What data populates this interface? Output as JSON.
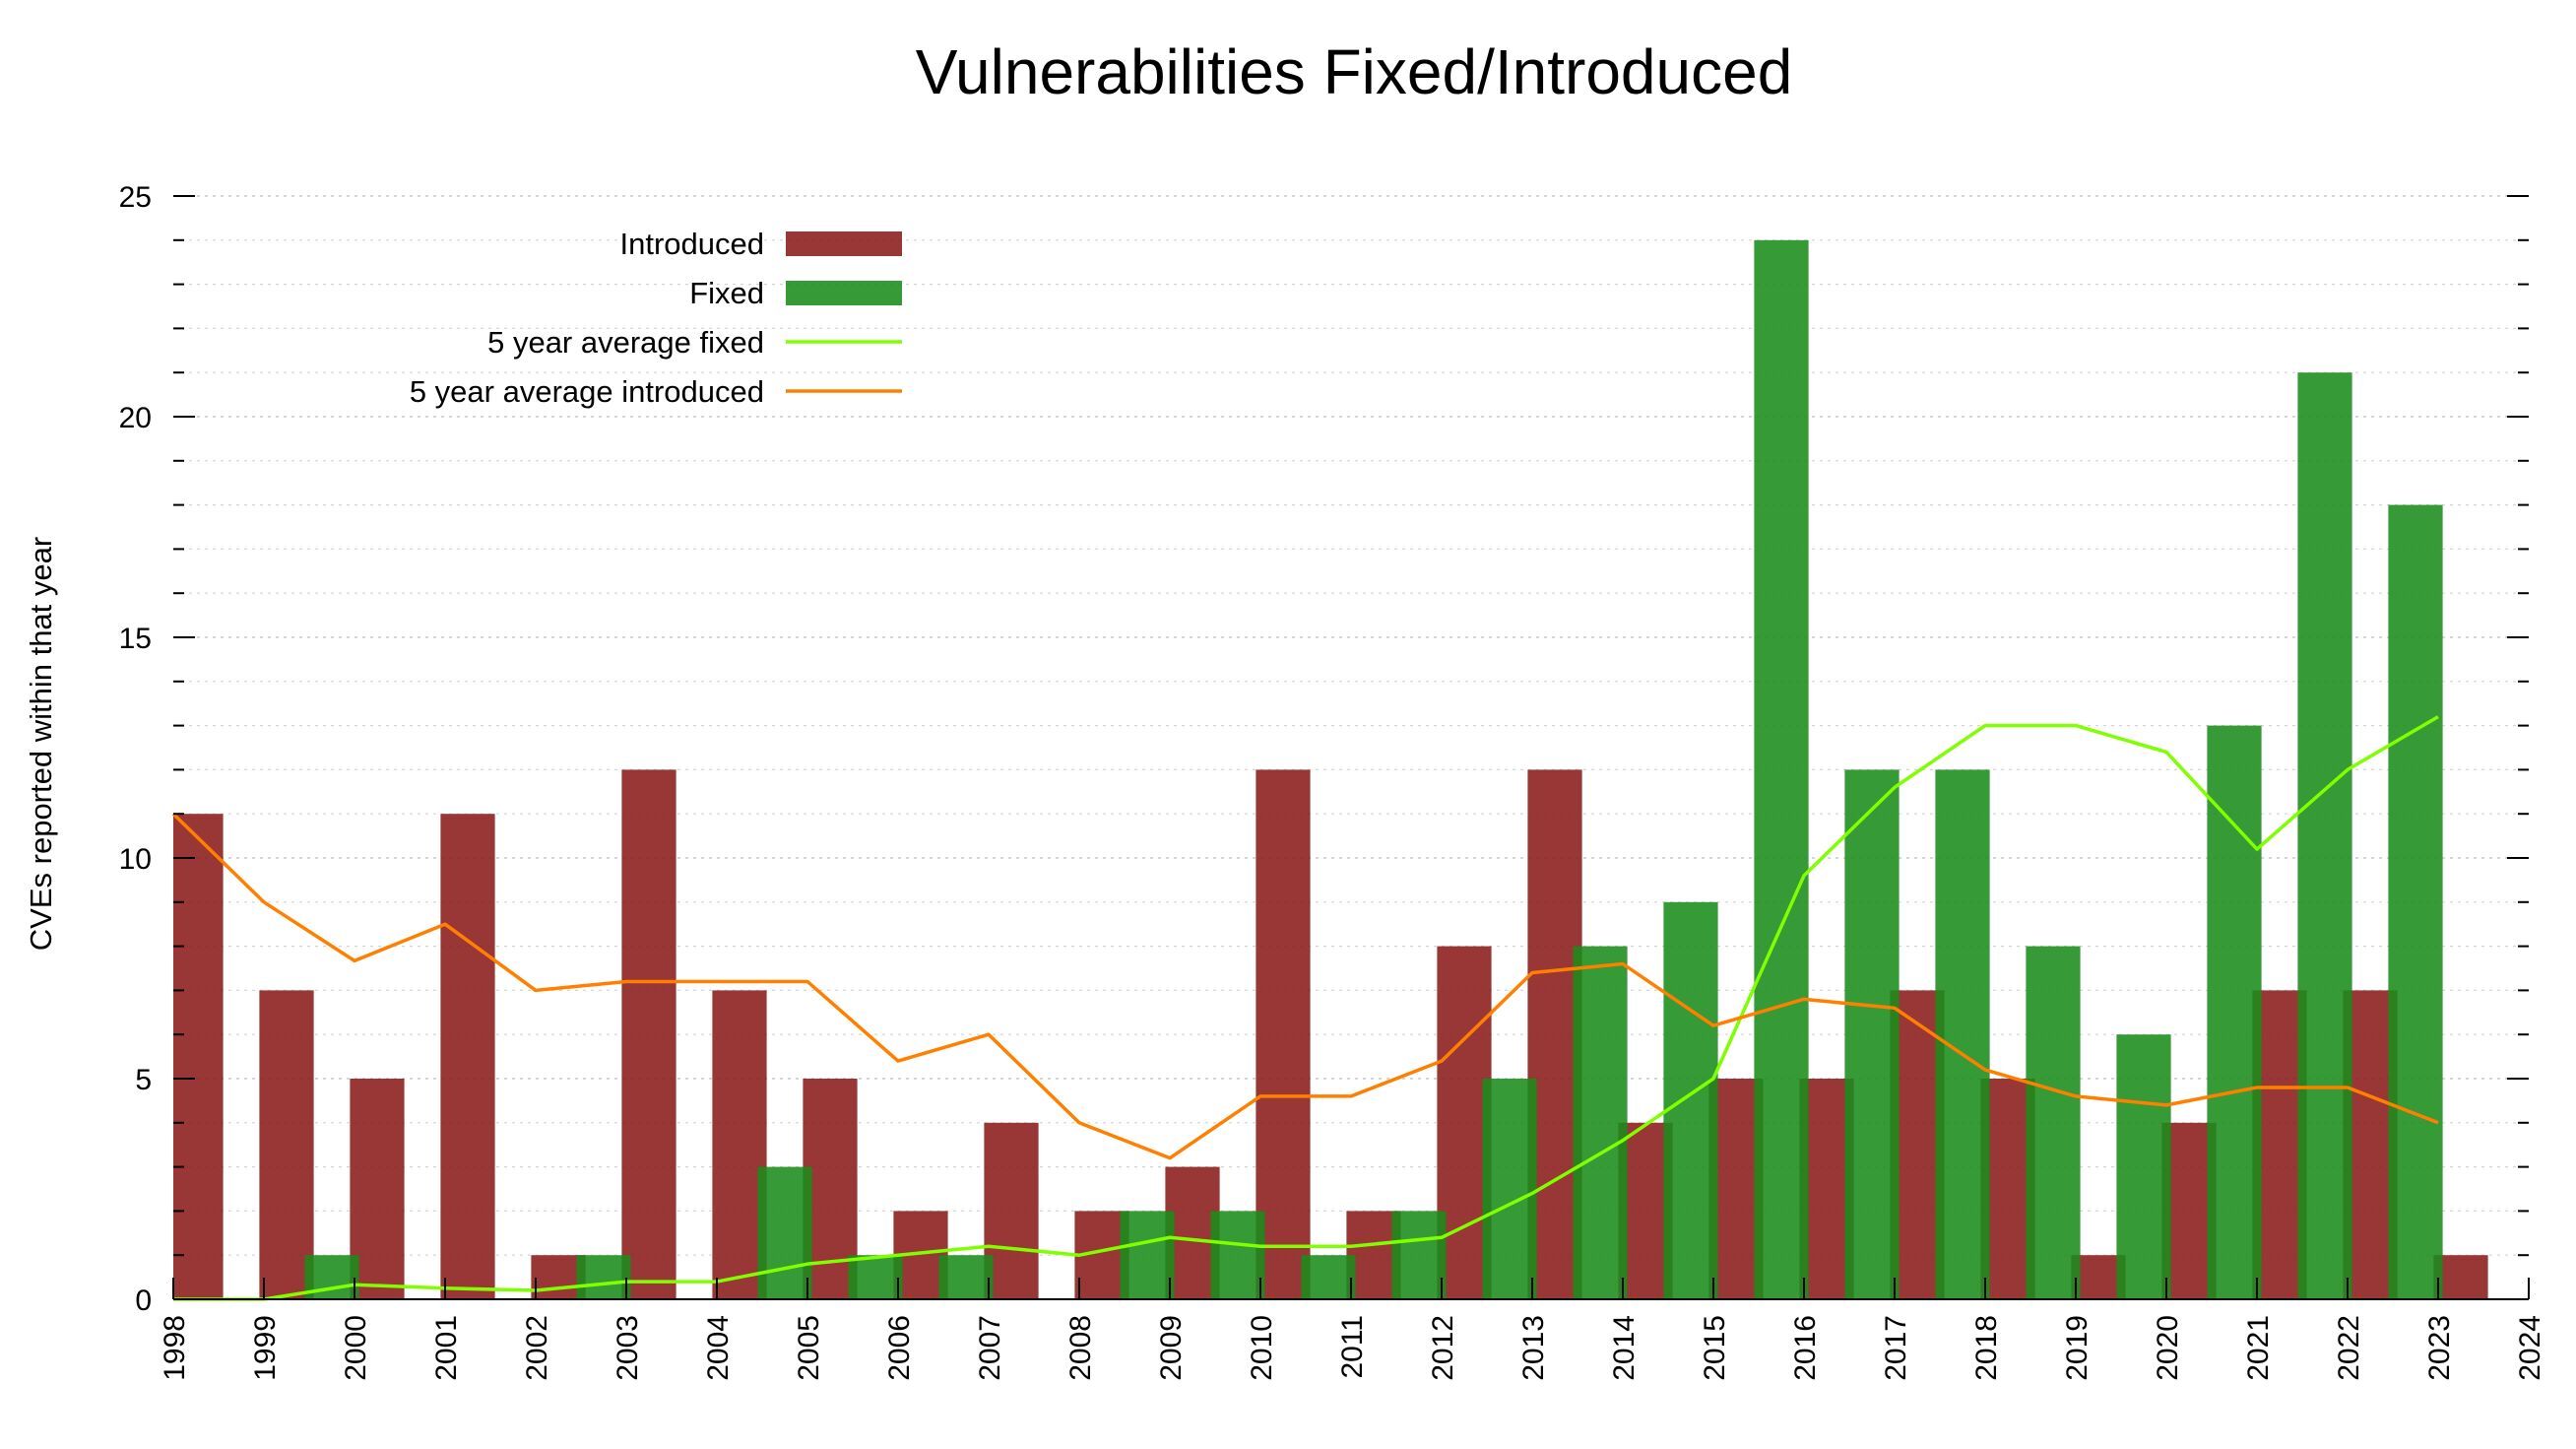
{
  "chart_data": {
    "type": "bar",
    "title": "Vulnerabilities Fixed/Introduced",
    "xlabel": "",
    "ylabel": "CVEs reported within that year",
    "x_ticks": [
      "1998",
      "1999",
      "2000",
      "2001",
      "2002",
      "2003",
      "2004",
      "2005",
      "2006",
      "2007",
      "2008",
      "2009",
      "2010",
      "2011",
      "2012",
      "2013",
      "2014",
      "2015",
      "2016",
      "2017",
      "2018",
      "2019",
      "2020",
      "2021",
      "2022",
      "2023",
      "2024"
    ],
    "y_ticks": [
      0,
      5,
      10,
      15,
      20,
      25
    ],
    "xlim": [
      1998,
      2024
    ],
    "ylim": [
      0,
      25
    ],
    "grid": true,
    "legend": "top-left",
    "categories": [
      "1998",
      "1999",
      "2000",
      "2001",
      "2002",
      "2003",
      "2004",
      "2005",
      "2006",
      "2007",
      "2008",
      "2009",
      "2010",
      "2011",
      "2012",
      "2013",
      "2014",
      "2015",
      "2016",
      "2017",
      "2018",
      "2019",
      "2020",
      "2021",
      "2022",
      "2023"
    ],
    "series": [
      {
        "name": "Introduced",
        "kind": "bar",
        "color": "#8b1a1a",
        "values": [
          11,
          7,
          5,
          11,
          1,
          12,
          7,
          5,
          2,
          4,
          2,
          3,
          12,
          2,
          8,
          12,
          4,
          5,
          5,
          7,
          5,
          1,
          4,
          7,
          7,
          1
        ]
      },
      {
        "name": "Fixed",
        "kind": "bar",
        "color": "#1a8c1a",
        "values": [
          0,
          0,
          1,
          0,
          0,
          1,
          0,
          3,
          1,
          1,
          0,
          2,
          2,
          1,
          2,
          5,
          8,
          9,
          24,
          12,
          12,
          8,
          6,
          13,
          21,
          18
        ]
      },
      {
        "name": "5 year average fixed",
        "kind": "line",
        "color": "#80ff00",
        "values": [
          0,
          0,
          0.33,
          0.25,
          0.2,
          0.4,
          0.4,
          0.8,
          1.0,
          1.2,
          1.0,
          1.4,
          1.2,
          1.2,
          1.4,
          2.4,
          3.6,
          5.0,
          9.6,
          11.6,
          13.0,
          13.0,
          12.4,
          10.2,
          12.0,
          13.2
        ]
      },
      {
        "name": "5 year average introduced",
        "kind": "line",
        "color": "#ff8000",
        "values": [
          11,
          9,
          7.67,
          8.5,
          7.0,
          7.2,
          7.2,
          7.2,
          5.4,
          6.0,
          4.0,
          3.2,
          4.6,
          4.6,
          5.4,
          7.4,
          7.6,
          6.2,
          6.8,
          6.6,
          5.2,
          4.6,
          4.4,
          4.8,
          4.8,
          4.0
        ]
      }
    ]
  }
}
